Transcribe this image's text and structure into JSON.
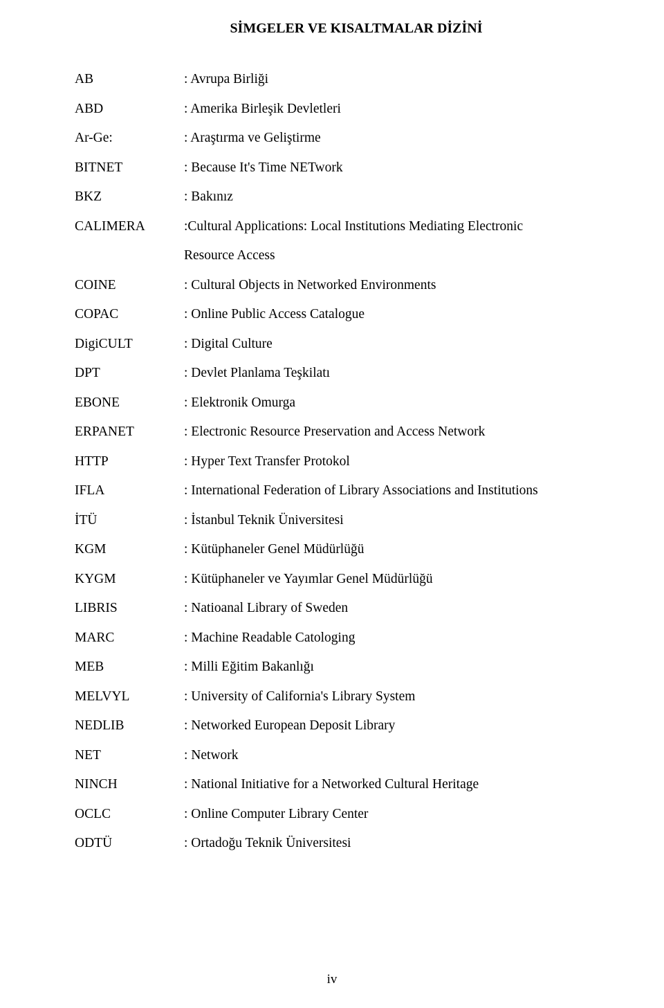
{
  "title": "SİMGELER VE KISALTMALAR DİZİNİ",
  "colors": {
    "background": "#ffffff",
    "text": "#000000"
  },
  "typography": {
    "family": "Times New Roman",
    "title_size": 20,
    "body_size": 19.5,
    "title_weight": "bold"
  },
  "entries": [
    {
      "abbrev": "AB",
      "definition": ": Avrupa Birliği"
    },
    {
      "abbrev": "ABD",
      "definition": ": Amerika Birleşik Devletleri"
    },
    {
      "abbrev": "Ar-Ge:",
      "definition": ": Araştırma ve Geliştirme"
    },
    {
      "abbrev": "BITNET",
      "definition": ": Because It's Time NETwork"
    },
    {
      "abbrev": "BKZ",
      "definition": ": Bakınız"
    },
    {
      "abbrev": "CALIMERA",
      "definition": ":Cultural Applications: Local Institutions Mediating Electronic",
      "continuation": "Resource Access"
    },
    {
      "abbrev": "COINE",
      "definition": ": Cultural Objects in Networked Environments"
    },
    {
      "abbrev": "COPAC",
      "definition": ": Online Public Access Catalogue"
    },
    {
      "abbrev": "DigiCULT",
      "definition": ": Digital Culture"
    },
    {
      "abbrev": "DPT",
      "definition": ": Devlet Planlama Teşkilatı"
    },
    {
      "abbrev": "EBONE",
      "definition": ": Elektronik Omurga"
    },
    {
      "abbrev": "ERPANET",
      "definition": ": Electronic Resource Preservation and Access Network"
    },
    {
      "abbrev": "HTTP",
      "definition": ": Hyper Text Transfer Protokol"
    },
    {
      "abbrev": "IFLA",
      "definition": ": International Federation of Library Associations and Institutions"
    },
    {
      "abbrev": "İTÜ",
      "definition": ": İstanbul Teknik Üniversitesi"
    },
    {
      "abbrev": "KGM",
      "definition": ": Kütüphaneler Genel Müdürlüğü"
    },
    {
      "abbrev": "KYGM",
      "definition": ": Kütüphaneler ve Yayımlar Genel Müdürlüğü"
    },
    {
      "abbrev": "LIBRIS",
      "definition": ": Natioanal Library of Sweden"
    },
    {
      "abbrev": "MARC",
      "definition": ": Machine Readable Catologing"
    },
    {
      "abbrev": "MEB",
      "definition": ": Milli Eğitim Bakanlığı"
    },
    {
      "abbrev": "MELVYL",
      "definition": ": University of California's Library System"
    },
    {
      "abbrev": "NEDLIB",
      "definition": ": Networked European Deposit Library"
    },
    {
      "abbrev": "NET",
      "definition": ": Network"
    },
    {
      "abbrev": "NINCH",
      "definition": ": National Initiative for a Networked Cultural Heritage"
    },
    {
      "abbrev": "OCLC",
      "definition": ": Online Computer Library Center"
    },
    {
      "abbrev": "ODTÜ",
      "definition": ": Ortadoğu Teknik Üniversitesi"
    }
  ],
  "page_number": "iv"
}
